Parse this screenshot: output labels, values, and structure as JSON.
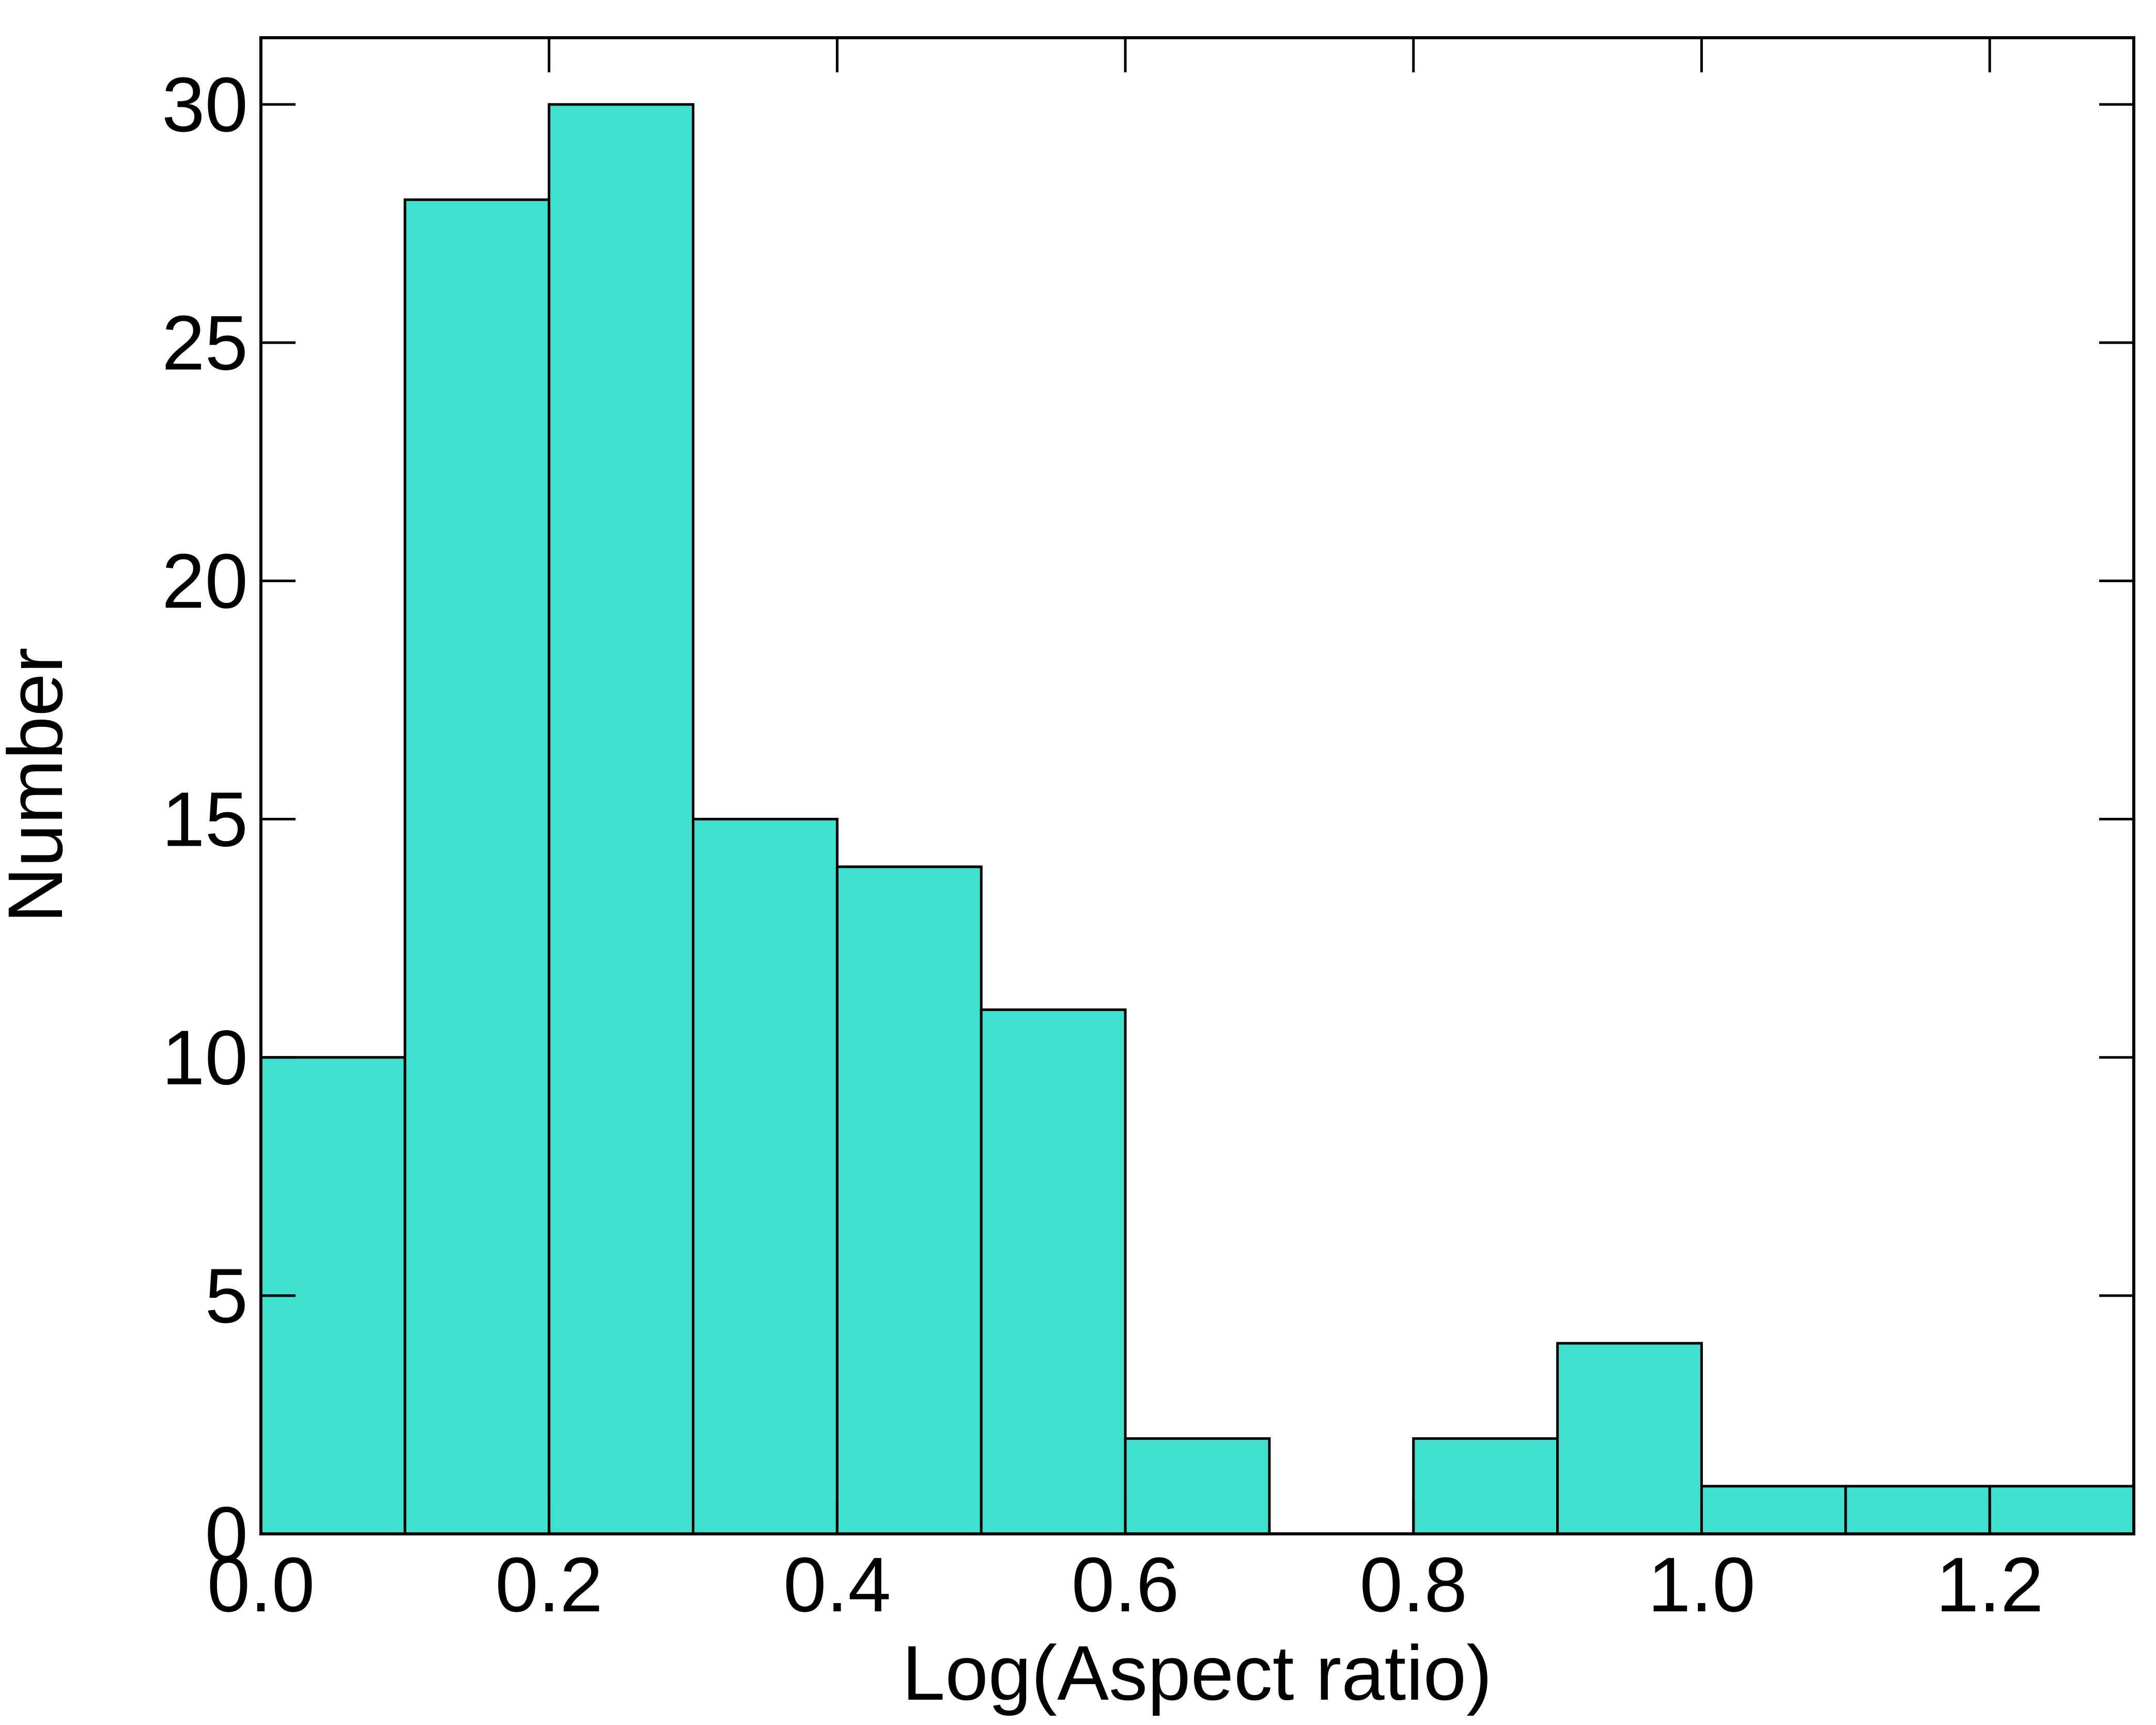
{
  "chart_data": {
    "type": "histogram",
    "x_label": "Log(Aspect ratio)",
    "y_label": "Number",
    "bins": [
      0.0,
      0.1,
      0.2,
      0.3,
      0.4,
      0.5,
      0.6,
      0.7,
      0.8,
      0.9,
      1.0,
      1.1,
      1.2,
      1.3
    ],
    "values": [
      10,
      28,
      30,
      15,
      14,
      11,
      2,
      0,
      2,
      4,
      1,
      1,
      1
    ],
    "color": "#40e0d0",
    "xlim": [
      0,
      1.3
    ],
    "ylim": [
      0,
      31.4
    ],
    "xticks": [
      {
        "value": 0,
        "label": "0.0"
      },
      0.2,
      0.4,
      0.6,
      0.8,
      {
        "value": 1,
        "label": "1.0"
      },
      1.2
    ],
    "yticks": [
      0,
      5,
      10,
      15,
      20,
      25,
      30
    ]
  }
}
